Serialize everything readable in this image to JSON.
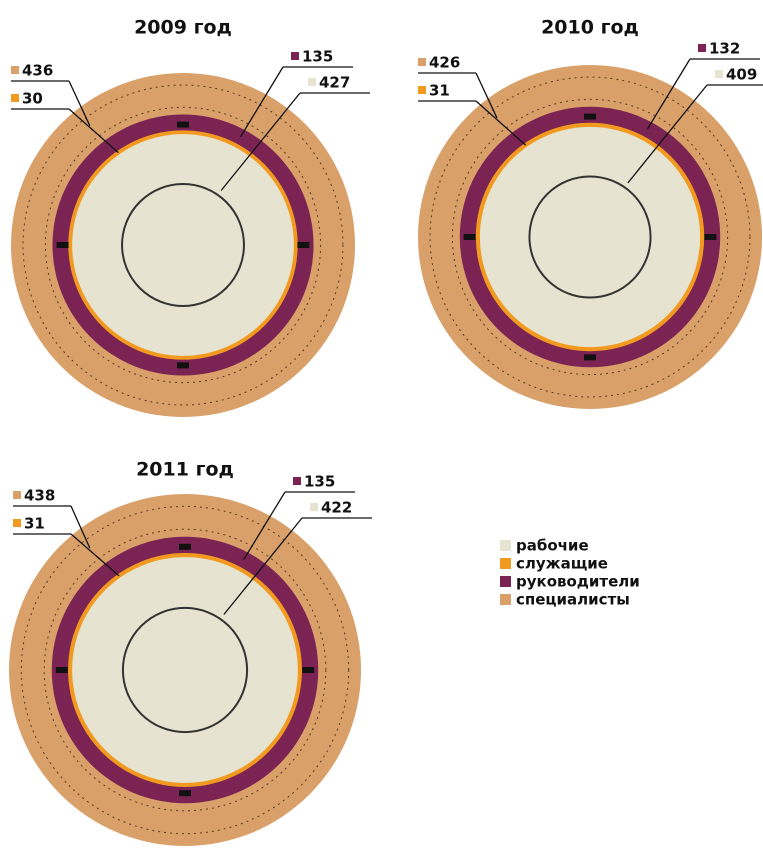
{
  "legend": {
    "entries": [
      {
        "name": "рабочие",
        "color": "#e6e4d0"
      },
      {
        "name": "служащие",
        "color": "#f29a1f"
      },
      {
        "name": "руководители",
        "color": "#7b2453"
      },
      {
        "name": "специалисты",
        "color": "#d9a06a"
      }
    ]
  },
  "chart_data": [
    {
      "type": "rings",
      "title": "2009 год",
      "values": [
        427,
        30,
        135,
        436
      ]
    },
    {
      "type": "rings",
      "title": "2010 год",
      "values": [
        409,
        31,
        132,
        426
      ]
    },
    {
      "type": "rings",
      "title": "2011 год",
      "values": [
        422,
        31,
        135,
        438
      ]
    }
  ]
}
